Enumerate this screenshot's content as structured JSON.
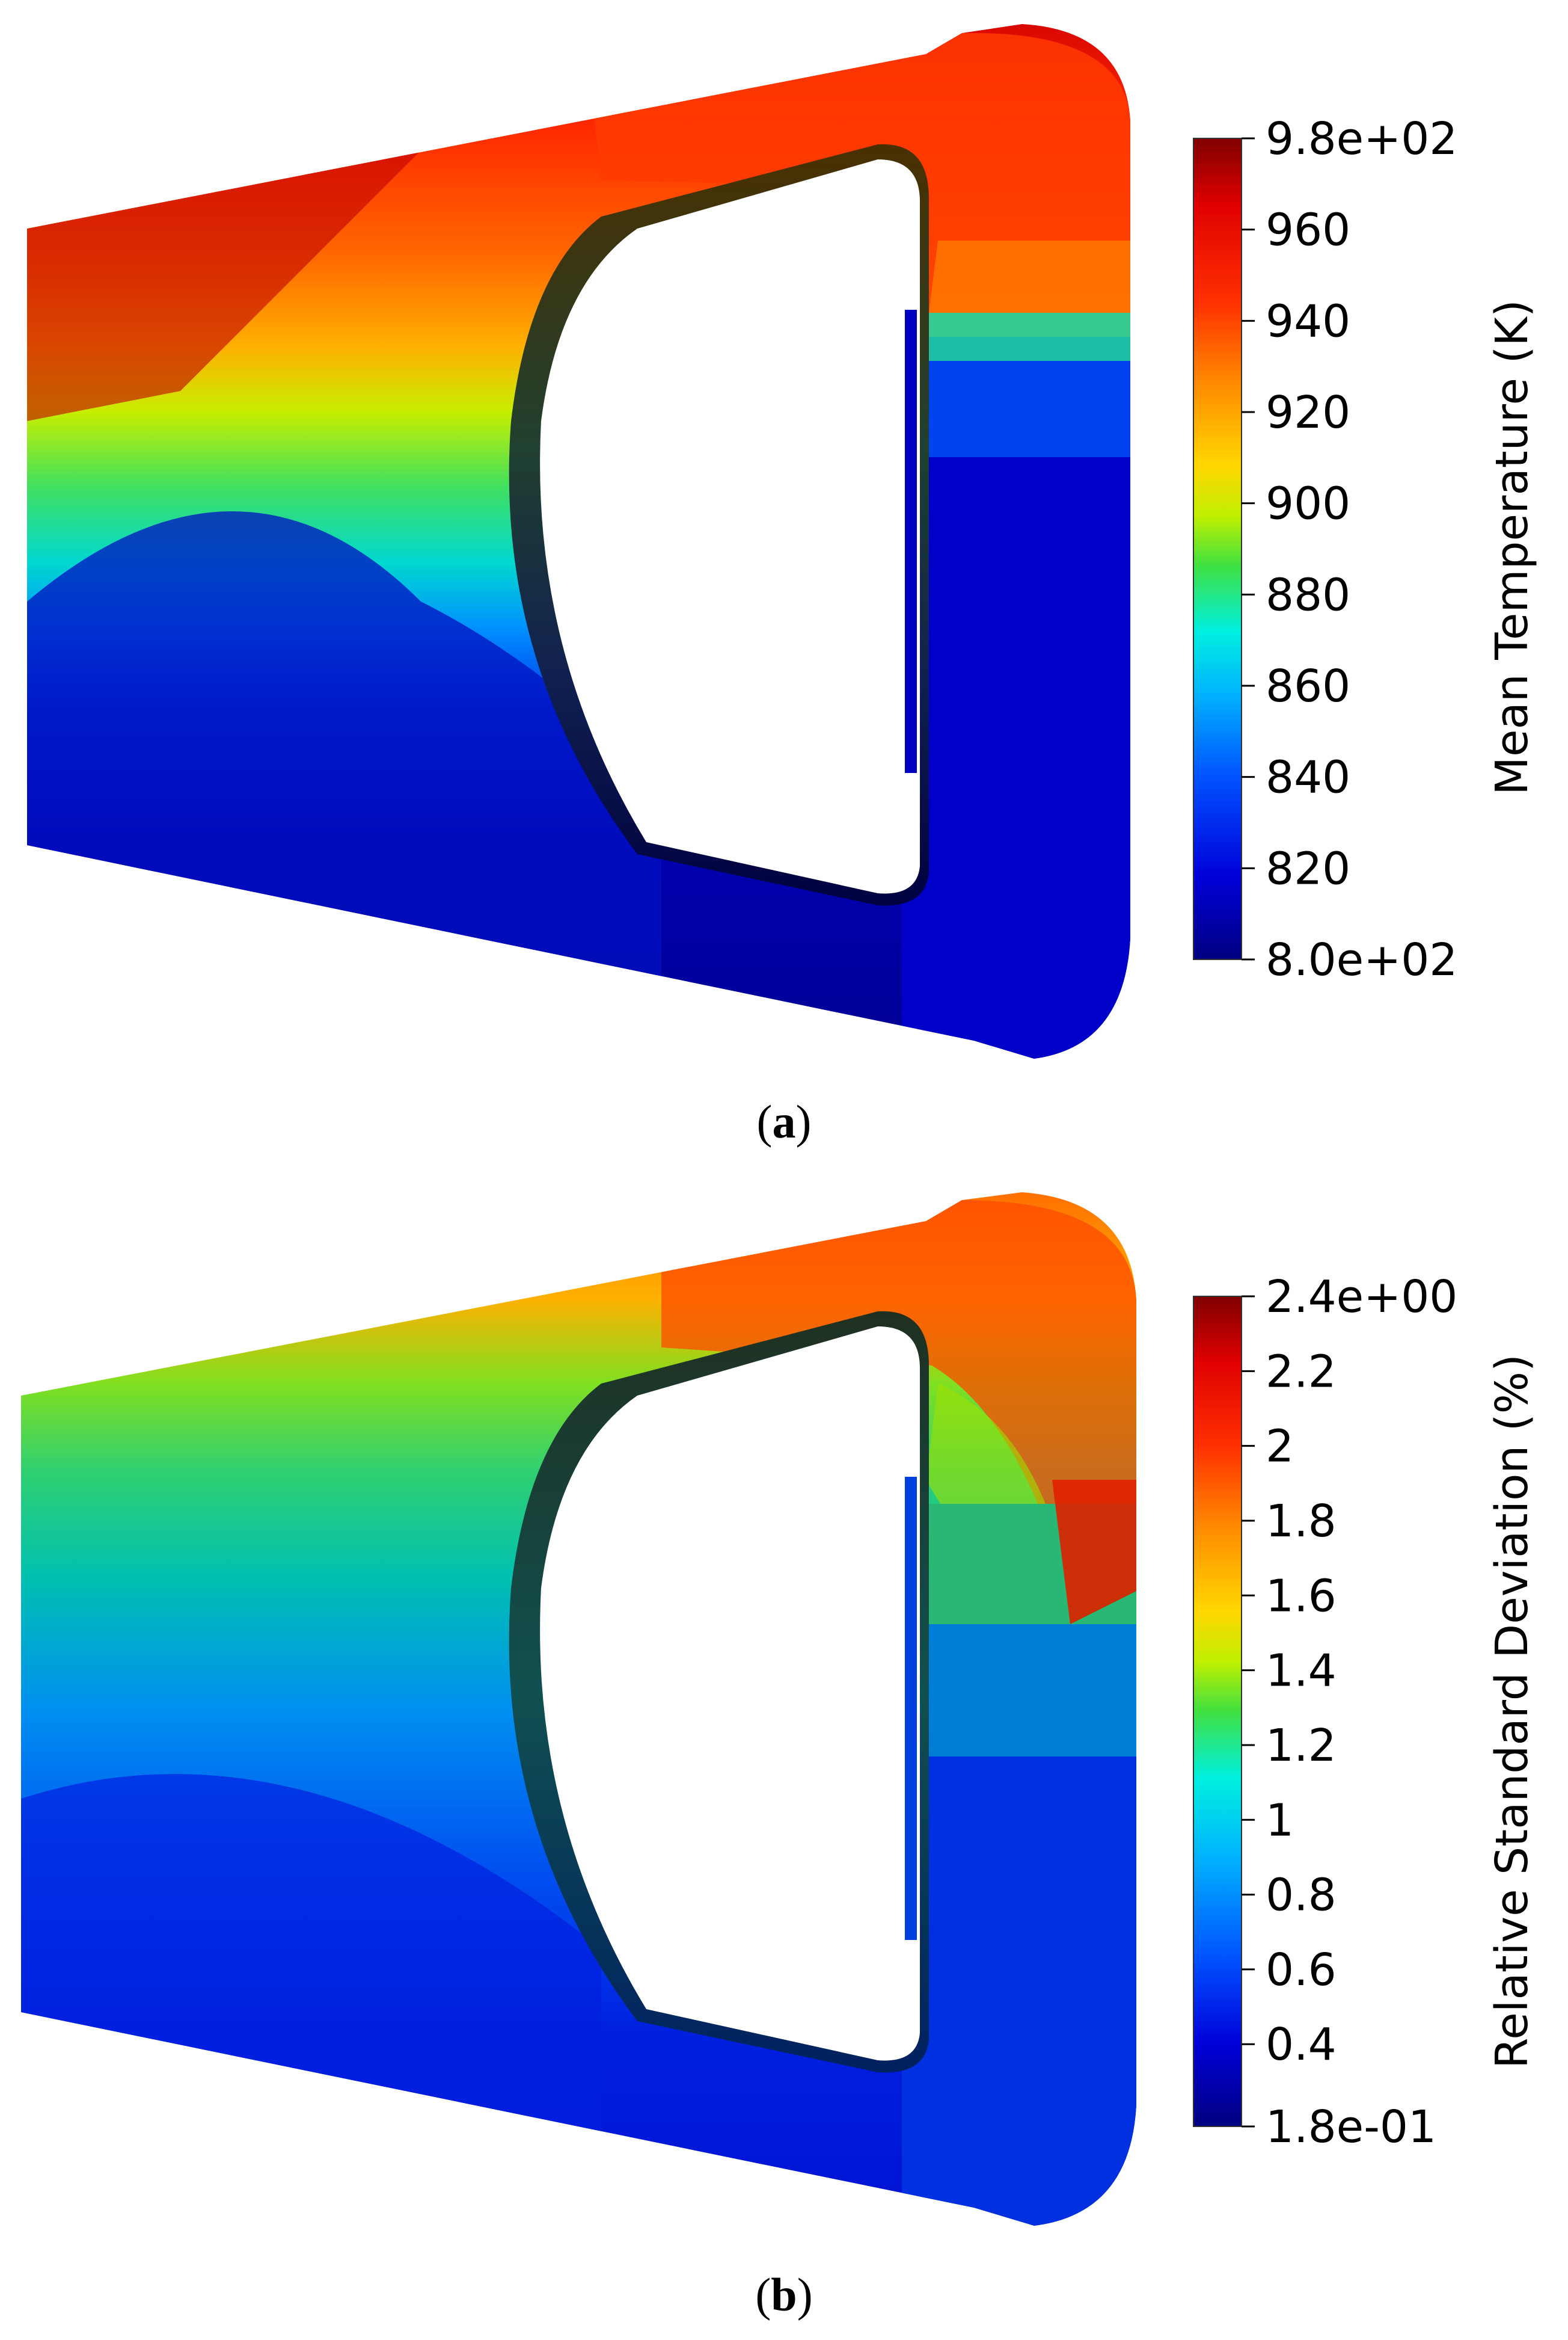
{
  "panels": [
    {
      "caption": "a",
      "colorbar": {
        "title": "Mean Temperature (K)",
        "min": 800,
        "max": 980,
        "ticks": [
          {
            "value": 980,
            "label": "9.8e+02"
          },
          {
            "value": 960,
            "label": "960"
          },
          {
            "value": 940,
            "label": "940"
          },
          {
            "value": 920,
            "label": "920"
          },
          {
            "value": 900,
            "label": "900"
          },
          {
            "value": 880,
            "label": "880"
          },
          {
            "value": 860,
            "label": "860"
          },
          {
            "value": 840,
            "label": "840"
          },
          {
            "value": 820,
            "label": "820"
          },
          {
            "value": 800,
            "label": "8.0e+02"
          }
        ]
      }
    },
    {
      "caption": "b",
      "colorbar": {
        "title": "Relative Standard Deviation (%)",
        "min": 0.18,
        "max": 2.4,
        "ticks": [
          {
            "value": 2.4,
            "label": "2.4e+00"
          },
          {
            "value": 2.2,
            "label": "2.2"
          },
          {
            "value": 2.0,
            "label": "2"
          },
          {
            "value": 1.8,
            "label": "1.8"
          },
          {
            "value": 1.6,
            "label": "1.6"
          },
          {
            "value": 1.4,
            "label": "1.4"
          },
          {
            "value": 1.2,
            "label": "1.2"
          },
          {
            "value": 1.0,
            "label": "1"
          },
          {
            "value": 0.8,
            "label": "0.8"
          },
          {
            "value": 0.6,
            "label": "0.6"
          },
          {
            "value": 0.4,
            "label": "0.4"
          },
          {
            "value": 0.18,
            "label": "1.8e-01"
          }
        ]
      }
    }
  ],
  "colormap": [
    "#000080",
    "#0000d8",
    "#0050ff",
    "#00b0ff",
    "#00f0e0",
    "#20e070",
    "#60e020",
    "#c0f000",
    "#ffd800",
    "#ff8c00",
    "#ff3000",
    "#e00000",
    "#800000"
  ]
}
